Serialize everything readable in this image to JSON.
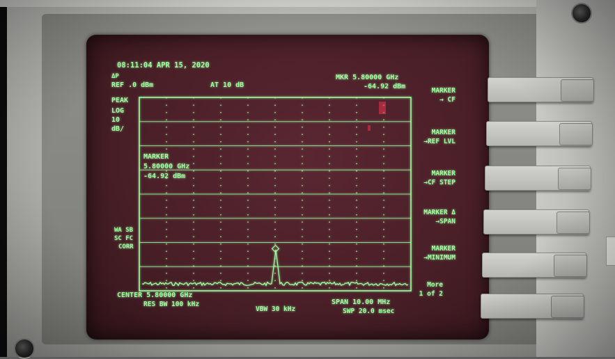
{
  "screen": {
    "datetime": "08:11:04 APR 15, 2020",
    "mode": "ΔP",
    "ref_level": "REF .0 dBm",
    "atten": "AT 10 dB",
    "marker_readout": "MKR 5.80000 GHz",
    "marker_amp": "-64.92 dBm",
    "detector": "PEAK",
    "scale_type": "LOG",
    "scale_value": "10",
    "scale_unit": "dB/",
    "marker_box_title": "MARKER",
    "marker_box_freq": "5.80000 GHz",
    "marker_box_amp": "-64.92 dBm",
    "corr_line1": "WA SB",
    "corr_line2": "SC FC",
    "corr_line3": "CORR",
    "center": "CENTER 5.80000 GHz",
    "res_bw": "RES BW 100 kHz",
    "vbw": "VBW 30 kHz",
    "span": "SPAN 10.00 MHz",
    "sweep": "SWP 20.0 msec",
    "trace_color": "#9dff9d",
    "crt_color": "#4a1f28"
  },
  "softkeys": [
    {
      "line1": "MARKER",
      "line2": "→ CF"
    },
    {
      "line1": "MARKER",
      "line2": "→REF LVL"
    },
    {
      "line1": "MARKER",
      "line2": "→CF STEP"
    },
    {
      "line1": "MARKER Δ",
      "line2": "→SPAN"
    },
    {
      "line1": "MARKER",
      "line2": "→MINIMUM"
    },
    {
      "line1": "More",
      "line2": "1 of 2"
    }
  ]
}
